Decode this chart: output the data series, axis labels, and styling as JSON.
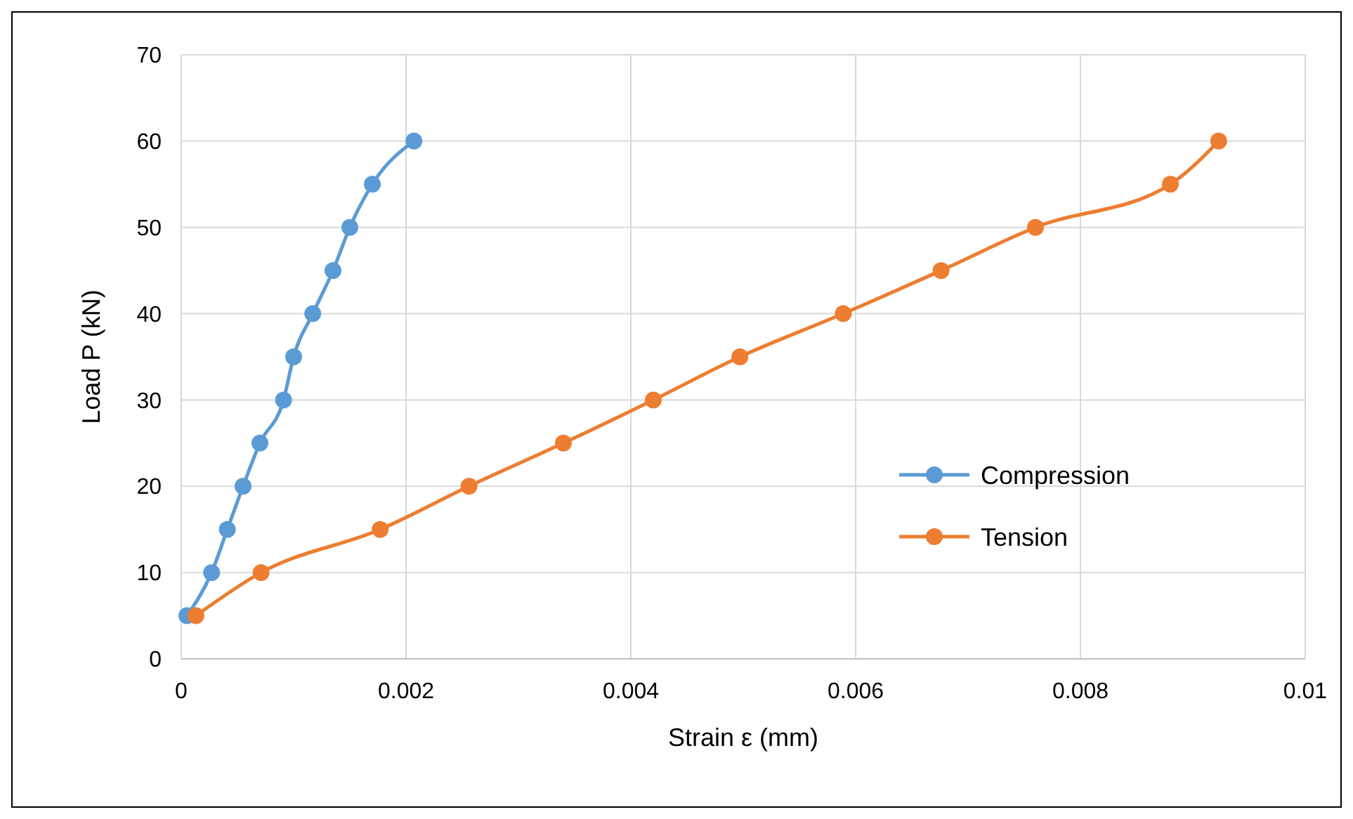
{
  "chart_data": {
    "type": "line",
    "xlabel": "Strain ε (mm)",
    "ylabel": "Load P (kN)",
    "xlim": [
      0,
      0.01
    ],
    "xticks": [
      0,
      0.002,
      0.004,
      0.006,
      0.008,
      0.01
    ],
    "ylim": [
      0,
      70
    ],
    "yticks": [
      0,
      10,
      20,
      30,
      40,
      50,
      60,
      70
    ],
    "grid": true,
    "legend": "right",
    "marker": "circle",
    "line_style": "solid",
    "series": [
      {
        "name": "Compression",
        "color": "#5b9bd5",
        "x": [
          5e-05,
          0.00027,
          0.00041,
          0.00055,
          0.0007,
          0.00091,
          0.001,
          0.00117,
          0.00135,
          0.0015,
          0.0017,
          0.00207
        ],
        "values": [
          5,
          10,
          15,
          20,
          25,
          30,
          35,
          40,
          45,
          50,
          55,
          60
        ]
      },
      {
        "name": "Tension",
        "color": "#ed7d31",
        "x": [
          0.00013,
          0.00071,
          0.00177,
          0.00256,
          0.0034,
          0.0042,
          0.00497,
          0.00589,
          0.00676,
          0.0076,
          0.0088,
          0.00923
        ],
        "values": [
          5,
          10,
          15,
          20,
          25,
          30,
          35,
          40,
          45,
          50,
          55,
          60
        ]
      }
    ]
  }
}
